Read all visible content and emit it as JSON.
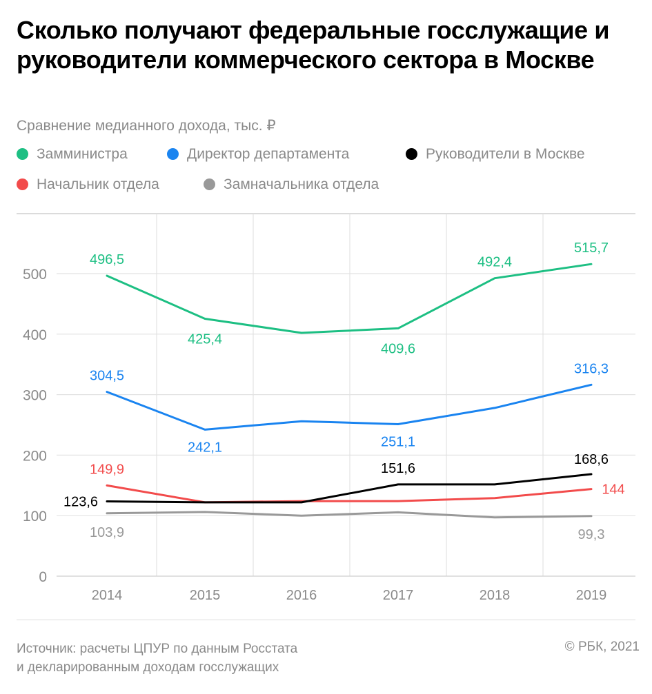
{
  "title": "Сколько получают федеральные госслужащие и руководители коммерческого сектора в Москве",
  "subtitle": "Сравнение медианного дохода, тыс. ₽",
  "footer": {
    "source_line1": "Источник: расчеты ЦПУР по данным Росстата",
    "source_line2": "и декларированным доходам госслужащих",
    "copyright": "© РБК, 2021"
  },
  "chart_data": {
    "type": "line",
    "x": [
      "2014",
      "2015",
      "2016",
      "2017",
      "2018",
      "2019"
    ],
    "ylim": [
      0,
      560
    ],
    "yticks": [
      0,
      100,
      200,
      300,
      400,
      500
    ],
    "grid": true,
    "legend_position": "top",
    "series": [
      {
        "name": "Замминистра",
        "color": "#1dbf83",
        "values": [
          496.5,
          425.4,
          402,
          409.6,
          492.4,
          515.7
        ],
        "labels": [
          "496,5",
          "425,4",
          "",
          "409,6",
          "492,4",
          "515,7"
        ]
      },
      {
        "name": "Директор департамента",
        "color": "#1a84f0",
        "values": [
          304.5,
          242.1,
          256,
          251.1,
          278,
          316.3
        ],
        "labels": [
          "304,5",
          "242,1",
          "",
          "251,1",
          "",
          "316,3"
        ]
      },
      {
        "name": "Руководители в Москве",
        "color": "#000000",
        "values": [
          123.6,
          122,
          122,
          151.6,
          151.6,
          168.6
        ],
        "labels": [
          "123,6",
          "",
          "",
          "151,6",
          "",
          "168,6"
        ]
      },
      {
        "name": "Начальник отдела",
        "color": "#f24b4b",
        "values": [
          149.9,
          122,
          124,
          124,
          129,
          144
        ],
        "labels": [
          "149,9",
          "",
          "",
          "",
          "",
          "144"
        ]
      },
      {
        "name": "Замначальника отдела",
        "color": "#999999",
        "values": [
          103.9,
          106,
          100,
          105.5,
          97,
          99.3
        ],
        "labels": [
          "103,9",
          "",
          "",
          "",
          "",
          "99,3"
        ]
      }
    ]
  }
}
